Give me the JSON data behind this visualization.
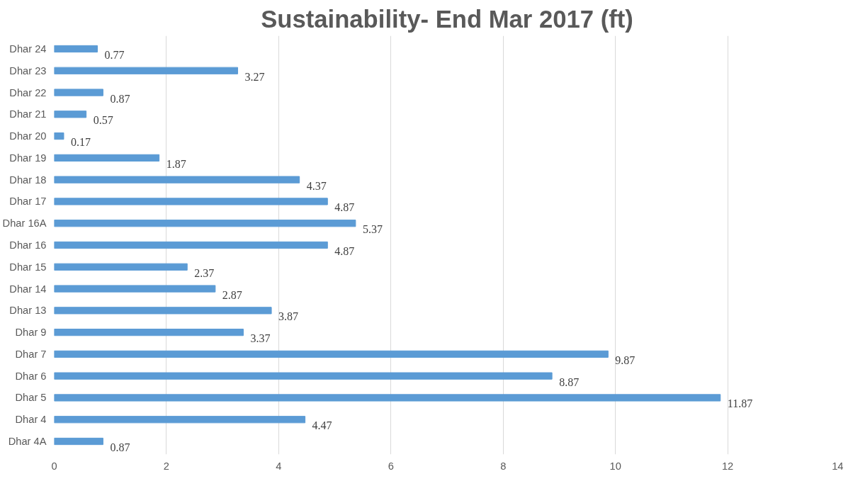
{
  "chart_data": {
    "type": "bar",
    "orientation": "horizontal",
    "title": "Sustainability- End Mar 2017 (ft)",
    "categories": [
      "Dhar 24",
      "Dhar 23",
      "Dhar 22",
      "Dhar 21",
      "Dhar 20",
      "Dhar 19",
      "Dhar 18",
      "Dhar 17",
      "Dhar 16A",
      "Dhar 16",
      "Dhar 15",
      "Dhar 14",
      "Dhar 13",
      "Dhar 9",
      "Dhar 7",
      "Dhar 6",
      "Dhar 5",
      "Dhar 4",
      "Dhar 4A"
    ],
    "values": [
      0.77,
      3.27,
      0.87,
      0.57,
      0.17,
      1.87,
      4.37,
      4.87,
      5.37,
      4.87,
      2.37,
      2.87,
      3.87,
      3.37,
      9.87,
      8.87,
      11.87,
      4.47,
      0.87
    ],
    "color": "#5b9bd5",
    "xlim": [
      0,
      14
    ],
    "xticks": [
      0,
      2,
      4,
      6,
      8,
      10,
      12,
      14
    ],
    "grid": "x",
    "data_labels": true
  }
}
